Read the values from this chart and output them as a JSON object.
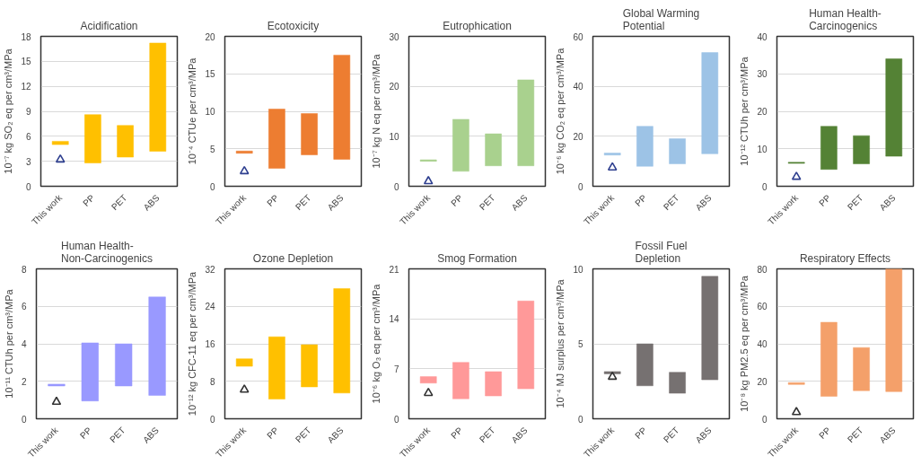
{
  "chart_data": [
    {
      "type": "bar",
      "title": "Acidification",
      "ylabel": "10⁻⁷ kg SO₂ eq per cm³/MPa",
      "categories": [
        "This work",
        "PP",
        "PET",
        "ABS"
      ],
      "ylim": [
        0,
        18
      ],
      "yticks": [
        0,
        3,
        6,
        9,
        12,
        15,
        18
      ],
      "grid": "y",
      "series": [
        {
          "color": "#ffc000",
          "base": [
            5.0,
            2.8,
            3.5,
            4.2
          ],
          "values": [
            0.4,
            5.8,
            3.8,
            13.0
          ]
        },
        {
          "type": "scatter",
          "color": "#2e3f8f",
          "marker": "triangle",
          "x": [
            "This work"
          ],
          "values": [
            3.2
          ]
        }
      ]
    },
    {
      "type": "bar",
      "title": "Ecotoxicity",
      "ylabel": "10⁻⁴ CTUe per cm³/MPa",
      "categories": [
        "This work",
        "PP",
        "PET",
        "ABS"
      ],
      "ylim": [
        0,
        20
      ],
      "yticks": [
        0,
        5,
        10,
        15,
        20
      ],
      "grid": "y",
      "series": [
        {
          "color": "#ed7d31",
          "base": [
            4.4,
            2.4,
            4.2,
            3.6
          ],
          "values": [
            0.3,
            7.9,
            5.5,
            13.9
          ]
        },
        {
          "type": "scatter",
          "color": "#2e3f8f",
          "marker": "triangle",
          "x": [
            "This work"
          ],
          "values": [
            2.0
          ]
        }
      ]
    },
    {
      "type": "bar",
      "title": "Eutrophication",
      "ylabel": "10⁻⁷ kg N eq per cm³/MPa",
      "categories": [
        "This work",
        "PP",
        "PET",
        "ABS"
      ],
      "ylim": [
        0,
        30
      ],
      "yticks": [
        0,
        10,
        20,
        30
      ],
      "grid": "y",
      "series": [
        {
          "color": "#a9d18e",
          "base": [
            5.0,
            3.0,
            4.1,
            4.1
          ],
          "values": [
            0.3,
            10.4,
            6.4,
            17.2
          ]
        },
        {
          "type": "scatter",
          "color": "#2e3f8f",
          "marker": "triangle",
          "x": [
            "This work"
          ],
          "values": [
            1.0
          ]
        }
      ]
    },
    {
      "type": "bar",
      "title": "Global Warming Potential",
      "ylabel": "10⁻⁶ kg CO₂ eq per cm³/MPa",
      "categories": [
        "This work",
        "PP",
        "PET",
        "ABS"
      ],
      "ylim": [
        0,
        60
      ],
      "yticks": [
        0,
        20,
        40,
        60
      ],
      "grid": "y",
      "series": [
        {
          "color": "#9dc3e6",
          "base": [
            12.5,
            8,
            9,
            13
          ],
          "values": [
            0.8,
            16,
            10,
            40.5
          ]
        },
        {
          "type": "scatter",
          "color": "#2e3f8f",
          "marker": "triangle",
          "x": [
            "This work"
          ],
          "values": [
            7.5
          ]
        }
      ]
    },
    {
      "type": "bar",
      "title": "Human Health-Carcinogenics",
      "ylabel": "10⁻¹² CTUh per cm³/MPa",
      "categories": [
        "This work",
        "PP",
        "PET",
        "ABS"
      ],
      "ylim": [
        0,
        40
      ],
      "yticks": [
        0,
        10,
        20,
        30,
        40
      ],
      "grid": "y",
      "series": [
        {
          "color": "#548235",
          "base": [
            6.1,
            4.5,
            6.0,
            8.0
          ],
          "values": [
            0.3,
            11.5,
            7.5,
            26.0
          ]
        },
        {
          "type": "scatter",
          "color": "#2e3f8f",
          "marker": "triangle",
          "x": [
            "This work"
          ],
          "values": [
            2.5
          ]
        }
      ]
    },
    {
      "type": "bar",
      "title": "Human Health-Non-Carcinogenics",
      "ylabel": "10⁻¹¹ CTUh per cm³/MPa",
      "categories": [
        "This work",
        "PP",
        "PET",
        "ABS"
      ],
      "ylim": [
        0,
        8
      ],
      "yticks": [
        0,
        2,
        4,
        6,
        8
      ],
      "grid": "y",
      "series": [
        {
          "color": "#9999ff",
          "base": [
            1.75,
            0.95,
            1.75,
            1.25
          ],
          "values": [
            0.1,
            3.1,
            2.25,
            5.25
          ]
        },
        {
          "type": "scatter",
          "color": "#333333",
          "marker": "triangle",
          "x": [
            "This work"
          ],
          "values": [
            0.9
          ]
        }
      ]
    },
    {
      "type": "bar",
      "title": "Ozone Depletion",
      "ylabel": "10⁻¹² kg CFC-11 eq per cm³/MPa",
      "categories": [
        "This work",
        "PP",
        "PET",
        "ABS"
      ],
      "ylim": [
        0,
        32
      ],
      "yticks": [
        0,
        8,
        16,
        24,
        32
      ],
      "grid": "y",
      "series": [
        {
          "color": "#ffc000",
          "base": [
            11.2,
            4.2,
            6.8,
            5.5
          ],
          "values": [
            1.6,
            13.3,
            9.0,
            22.3
          ]
        },
        {
          "type": "scatter",
          "color": "#333333",
          "marker": "triangle",
          "x": [
            "This work"
          ],
          "values": [
            6.2
          ]
        }
      ]
    },
    {
      "type": "bar",
      "title": "Smog Formation",
      "ylabel": "10⁻⁶ kg O₃ eq per cm³/MPa",
      "categories": [
        "This work",
        "PP",
        "PET",
        "ABS"
      ],
      "ylim": [
        0,
        21
      ],
      "yticks": [
        0,
        7,
        14,
        21
      ],
      "grid": "y",
      "series": [
        {
          "color": "#ff9999",
          "base": [
            5.0,
            2.8,
            3.2,
            4.2
          ],
          "values": [
            0.9,
            5.1,
            3.4,
            12.3
          ]
        },
        {
          "type": "scatter",
          "color": "#333333",
          "marker": "triangle",
          "x": [
            "This work"
          ],
          "values": [
            3.6
          ]
        }
      ]
    },
    {
      "type": "bar",
      "title": "Fossil Fuel Depletion",
      "ylabel": "10⁻⁴ MJ surplus per cm³/MPa",
      "categories": [
        "This work",
        "PP",
        "PET",
        "ABS"
      ],
      "ylim": [
        0,
        10
      ],
      "yticks": [
        0,
        5,
        10
      ],
      "grid": "y",
      "series": [
        {
          "color": "#767171",
          "base": [
            3.0,
            2.2,
            1.7,
            2.6
          ],
          "values": [
            0.15,
            2.8,
            1.4,
            6.9
          ]
        },
        {
          "type": "scatter",
          "color": "#333333",
          "marker": "triangle",
          "x": [
            "This work"
          ],
          "values": [
            2.8
          ]
        }
      ]
    },
    {
      "type": "bar",
      "title": "Respiratory Effects",
      "ylabel": "10⁻⁸ kg PM2.5 eq per cm³/MPa",
      "categories": [
        "This work",
        "PP",
        "PET",
        "ABS"
      ],
      "ylim": [
        0,
        80
      ],
      "yticks": [
        0,
        20,
        40,
        60,
        80
      ],
      "grid": "y",
      "series": [
        {
          "color": "#f4a06a",
          "base": [
            18.3,
            12,
            15,
            14.5
          ],
          "values": [
            1.0,
            39.5,
            23,
            65.5
          ]
        },
        {
          "type": "scatter",
          "color": "#333333",
          "marker": "triangle",
          "x": [
            "This work"
          ],
          "values": [
            3.5
          ]
        }
      ]
    }
  ]
}
